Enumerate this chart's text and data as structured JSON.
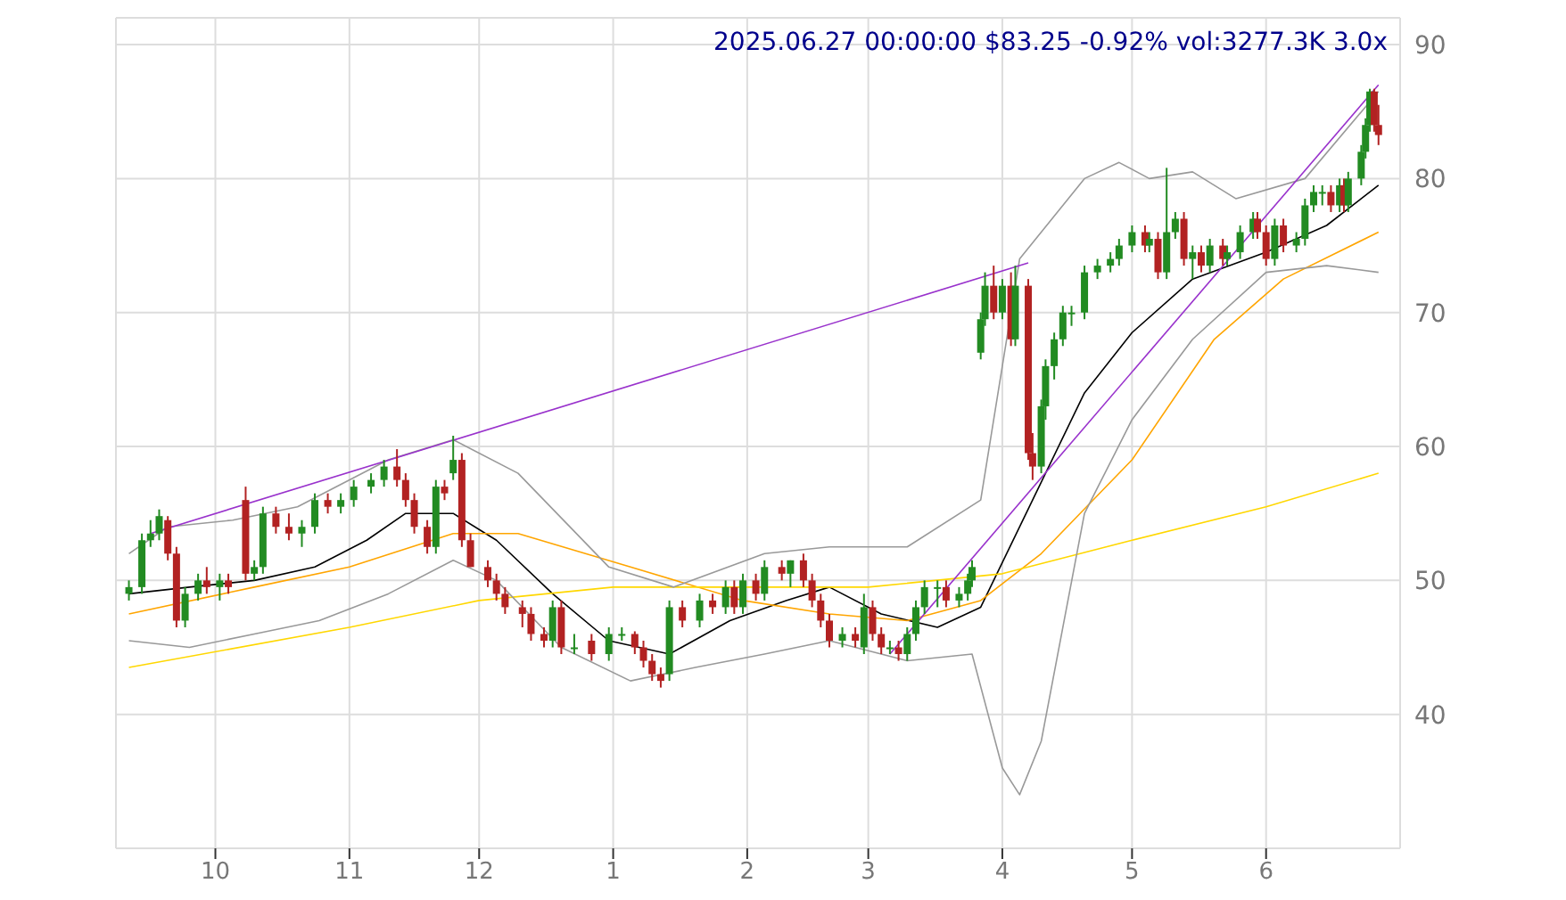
{
  "chart_data": {
    "type": "candlestick",
    "title": "2025.06.27 00:00:00 $83.25 -0.92% vol:3277.3K 3.0x",
    "xlim": [
      "2024-09-08",
      "2025-07-02"
    ],
    "xticks": [
      {
        "value": "2024-10-01",
        "label": "10"
      },
      {
        "value": "2024-11-01",
        "label": "11"
      },
      {
        "value": "2024-12-01",
        "label": "12"
      },
      {
        "value": "2025-01-01",
        "label": "1"
      },
      {
        "value": "2025-02-01",
        "label": "2"
      },
      {
        "value": "2025-03-01",
        "label": "3"
      },
      {
        "value": "2025-04-01",
        "label": "4"
      },
      {
        "value": "2025-05-01",
        "label": "5"
      },
      {
        "value": "2025-06-01",
        "label": "6"
      }
    ],
    "ylim": [
      30,
      92
    ],
    "yticks": [
      40,
      50,
      60,
      70,
      80,
      90
    ],
    "grid": true,
    "x": [
      "2024-09-11",
      "2024-09-14",
      "2024-09-16",
      "2024-09-18",
      "2024-09-20",
      "2024-09-22",
      "2024-09-24",
      "2024-09-27",
      "2024-09-29",
      "2024-10-02",
      "2024-10-04",
      "2024-10-08",
      "2024-10-10",
      "2024-10-12",
      "2024-10-15",
      "2024-10-18",
      "2024-10-21",
      "2024-10-24",
      "2024-10-27",
      "2024-10-30",
      "2024-11-02",
      "2024-11-06",
      "2024-11-09",
      "2024-11-12",
      "2024-11-14",
      "2024-11-16",
      "2024-11-19",
      "2024-11-21",
      "2024-11-23",
      "2024-11-25",
      "2024-11-27",
      "2024-11-29",
      "2024-12-03",
      "2024-12-05",
      "2024-12-07",
      "2024-12-11",
      "2024-12-13",
      "2024-12-16",
      "2024-12-18",
      "2024-12-20",
      "2024-12-23",
      "2024-12-27",
      "2024-12-31",
      "2025-01-03",
      "2025-01-06",
      "2025-01-08",
      "2025-01-10",
      "2025-01-12",
      "2025-01-14",
      "2025-01-17",
      "2025-01-21",
      "2025-01-24",
      "2025-01-27",
      "2025-01-29",
      "2025-01-31",
      "2025-02-03",
      "2025-02-05",
      "2025-02-09",
      "2025-02-11",
      "2025-02-14",
      "2025-02-16",
      "2025-02-18",
      "2025-02-20",
      "2025-02-23",
      "2025-02-26",
      "2025-02-28",
      "2025-03-02",
      "2025-03-04",
      "2025-03-06",
      "2025-03-08",
      "2025-03-10",
      "2025-03-12",
      "2025-03-14",
      "2025-03-17",
      "2025-03-19",
      "2025-03-22",
      "2025-03-24",
      "2025-03-25",
      "2025-03-27",
      "2025-03-28",
      "2025-03-30",
      "2025-04-01",
      "2025-04-03",
      "2025-04-04",
      "2025-04-07",
      "2025-04-08",
      "2025-04-10",
      "2025-04-11",
      "2025-04-13",
      "2025-04-15",
      "2025-04-17",
      "2025-04-20",
      "2025-04-23",
      "2025-04-26",
      "2025-04-28",
      "2025-05-01",
      "2025-05-04",
      "2025-05-05",
      "2025-05-07",
      "2025-05-09",
      "2025-05-11",
      "2025-05-13",
      "2025-05-15",
      "2025-05-17",
      "2025-05-19",
      "2025-05-22",
      "2025-05-23",
      "2025-05-26",
      "2025-05-29",
      "2025-05-30",
      "2025-06-01",
      "2025-06-03",
      "2025-06-05",
      "2025-06-08",
      "2025-06-10",
      "2025-06-12",
      "2025-06-14",
      "2025-06-16",
      "2025-06-18",
      "2025-06-19",
      "2025-06-20",
      "2025-06-23",
      "2025-06-24",
      "2025-06-25",
      "2025-06-26",
      "2025-06-27"
    ],
    "ohlc": [
      [
        49,
        50,
        48.5,
        49.5
      ],
      [
        49.5,
        53.5,
        49,
        53
      ],
      [
        53,
        54.5,
        52.5,
        53.5
      ],
      [
        53.5,
        55.3,
        53,
        54.8
      ],
      [
        54.5,
        54.8,
        51.5,
        52
      ],
      [
        52,
        52.5,
        46.5,
        47
      ],
      [
        47,
        49.5,
        46.5,
        49
      ],
      [
        49,
        50.5,
        48.5,
        50
      ],
      [
        50,
        51,
        49,
        49.5
      ],
      [
        49.5,
        50.5,
        48.5,
        50
      ],
      [
        50,
        50.5,
        49,
        49.5
      ],
      [
        56,
        57,
        50,
        50.5
      ],
      [
        50.5,
        51.5,
        50,
        51
      ],
      [
        51,
        55.5,
        50.5,
        55
      ],
      [
        55,
        55.5,
        53.5,
        54
      ],
      [
        54,
        55,
        53,
        53.5
      ],
      [
        53.5,
        54.5,
        52.5,
        54
      ],
      [
        54,
        56.5,
        53.5,
        56
      ],
      [
        56,
        56.5,
        55,
        55.5
      ],
      [
        55.5,
        56.5,
        55,
        56
      ],
      [
        56,
        57.5,
        55.5,
        57
      ],
      [
        57,
        58,
        56.5,
        57.5
      ],
      [
        57.5,
        59,
        57,
        58.5
      ],
      [
        58.5,
        59.8,
        57,
        57.5
      ],
      [
        57.5,
        58,
        55.5,
        56
      ],
      [
        56,
        56.5,
        53.5,
        54
      ],
      [
        54,
        54.5,
        52,
        52.5
      ],
      [
        52.5,
        57.5,
        52,
        57
      ],
      [
        57,
        57.5,
        56,
        56.5
      ],
      [
        58,
        60.8,
        57.5,
        59
      ],
      [
        59,
        59.5,
        52.5,
        53
      ],
      [
        53,
        53.5,
        51,
        51
      ],
      [
        51,
        51.5,
        49.5,
        50
      ],
      [
        50,
        50.5,
        48.5,
        49
      ],
      [
        49,
        49.5,
        47.5,
        48
      ],
      [
        48,
        48.5,
        46.5,
        47.5
      ],
      [
        47.5,
        48,
        45.5,
        46
      ],
      [
        46,
        46.5,
        45,
        45.5
      ],
      [
        45.5,
        48.5,
        45,
        48
      ],
      [
        48,
        48.5,
        44.5,
        45
      ],
      [
        45,
        46,
        44.5,
        45
      ],
      [
        45.5,
        46,
        44,
        44.5
      ],
      [
        44.5,
        46.5,
        44,
        46
      ],
      [
        46,
        46.5,
        45.5,
        46
      ],
      [
        46,
        46.2,
        44.5,
        45
      ],
      [
        45,
        45.5,
        43.5,
        44
      ],
      [
        44,
        44.5,
        42.5,
        43
      ],
      [
        43,
        43.5,
        42,
        42.5
      ],
      [
        43,
        48.5,
        42.5,
        48
      ],
      [
        48,
        48.5,
        46.5,
        47
      ],
      [
        47,
        49,
        46.5,
        48.5
      ],
      [
        48.5,
        49,
        47.5,
        48
      ],
      [
        48,
        50,
        47.5,
        49.5
      ],
      [
        49.5,
        50,
        47.5,
        48
      ],
      [
        48,
        50.5,
        47.5,
        50
      ],
      [
        50,
        50.5,
        48.5,
        49
      ],
      [
        49,
        51.5,
        48.5,
        51
      ],
      [
        51,
        51.5,
        50,
        50.5
      ],
      [
        50.5,
        51.5,
        49.5,
        51.5
      ],
      [
        51.5,
        52,
        49.5,
        50
      ],
      [
        50,
        50.5,
        48,
        48.5
      ],
      [
        48.5,
        49,
        46.5,
        47
      ],
      [
        47,
        47.5,
        45,
        45.5
      ],
      [
        45.5,
        46.5,
        45,
        46
      ],
      [
        46,
        46.5,
        45,
        45.5
      ],
      [
        45,
        49,
        44.5,
        48
      ],
      [
        48,
        48.5,
        45.5,
        46
      ],
      [
        46,
        46.5,
        44.5,
        45
      ],
      [
        45,
        45.5,
        44.5,
        45
      ],
      [
        45,
        45.5,
        44,
        44.5
      ],
      [
        44.5,
        46.5,
        44,
        46
      ],
      [
        46,
        48.5,
        45.5,
        48
      ],
      [
        48,
        50,
        47.5,
        49.5
      ],
      [
        49.5,
        50,
        48,
        49.5
      ],
      [
        49.5,
        50,
        48,
        48.5
      ],
      [
        48.5,
        49.5,
        48,
        49
      ],
      [
        49,
        50.5,
        48.5,
        50
      ],
      [
        50,
        51.5,
        49.5,
        51
      ],
      [
        67,
        70,
        66.5,
        69.5
      ],
      [
        69.5,
        73,
        69,
        72
      ],
      [
        72,
        73.5,
        69.5,
        70
      ],
      [
        70,
        72.5,
        69.5,
        72
      ],
      [
        72,
        73,
        67.5,
        68
      ],
      [
        68,
        73.5,
        67.5,
        72
      ],
      [
        72,
        72.5,
        59,
        59.5
      ],
      [
        59.5,
        61,
        57.5,
        58.5
      ],
      [
        58.5,
        63.5,
        58,
        63
      ],
      [
        63,
        66.5,
        62,
        66
      ],
      [
        66,
        68.5,
        65,
        68
      ],
      [
        68,
        70.5,
        67.5,
        70
      ],
      [
        70,
        70.5,
        69,
        70
      ],
      [
        70,
        73.5,
        69.5,
        73
      ],
      [
        73,
        74,
        72.5,
        73.5
      ],
      [
        73.5,
        74.5,
        73,
        74
      ],
      [
        74,
        75.5,
        73.5,
        75
      ],
      [
        75,
        76.5,
        74.5,
        76
      ],
      [
        76,
        76.5,
        74.5,
        75
      ],
      [
        75,
        76,
        74.5,
        75.5
      ],
      [
        75.5,
        76,
        72.5,
        73
      ],
      [
        73,
        80.8,
        72.5,
        76
      ],
      [
        76,
        77.5,
        75.5,
        77
      ],
      [
        77,
        77.5,
        73.5,
        74
      ],
      [
        74,
        75,
        72.5,
        74.5
      ],
      [
        74.5,
        75,
        73,
        73.5
      ],
      [
        73.5,
        75.5,
        73,
        75
      ],
      [
        75,
        75.5,
        73.5,
        74
      ],
      [
        74,
        75,
        73.5,
        74.5
      ],
      [
        74.5,
        76.5,
        74,
        76
      ],
      [
        76,
        77.5,
        75.5,
        77
      ],
      [
        77,
        77.5,
        75.5,
        76
      ],
      [
        76,
        76.5,
        73.5,
        74
      ],
      [
        74,
        77,
        73.5,
        76.5
      ],
      [
        76.5,
        77,
        74.5,
        75
      ],
      [
        75,
        76,
        74.5,
        75.5
      ],
      [
        75.5,
        78.5,
        75,
        78
      ],
      [
        78,
        79.5,
        77.5,
        79
      ],
      [
        79,
        79.5,
        78,
        79
      ],
      [
        79,
        79.5,
        77.5,
        78
      ],
      [
        78,
        80,
        77.5,
        79.5
      ],
      [
        79.5,
        80,
        77.5,
        78
      ],
      [
        78,
        80.5,
        77.5,
        80
      ],
      [
        80,
        82.5,
        79.5,
        82
      ],
      [
        82,
        84.5,
        81.5,
        84
      ],
      [
        84,
        86.7,
        83.5,
        86.5
      ],
      [
        86.5,
        86.7,
        83.5,
        84
      ],
      [
        84,
        85.5,
        82.5,
        83.25
      ]
    ],
    "series": [
      {
        "type": "line",
        "color": "#000000",
        "x": [
          "2024-09-11",
          "2024-09-25",
          "2024-10-10",
          "2024-10-24",
          "2024-11-05",
          "2024-11-14",
          "2024-11-25",
          "2024-12-05",
          "2024-12-18",
          "2024-12-31",
          "2025-01-14",
          "2025-01-28",
          "2025-02-10",
          "2025-02-20",
          "2025-03-04",
          "2025-03-17",
          "2025-03-27",
          "2025-04-08",
          "2025-04-20",
          "2025-05-01",
          "2025-05-15",
          "2025-06-01",
          "2025-06-15",
          "2025-06-27"
        ],
        "values": [
          49,
          49.5,
          50,
          51,
          53,
          55,
          55,
          53,
          49,
          45.5,
          44.5,
          47,
          48.5,
          49.5,
          47.5,
          46.5,
          48,
          56,
          64,
          68.5,
          72.5,
          74.5,
          76.5,
          79.5
        ]
      },
      {
        "type": "line",
        "color": "#ffa500",
        "x": [
          "2024-09-11",
          "2024-10-10",
          "2024-11-01",
          "2024-11-25",
          "2024-12-10",
          "2025-01-05",
          "2025-01-31",
          "2025-02-20",
          "2025-03-10",
          "2025-03-27",
          "2025-04-10",
          "2025-05-01",
          "2025-05-20",
          "2025-06-05",
          "2025-06-27"
        ],
        "values": [
          47.5,
          49.5,
          51,
          53.5,
          53.5,
          51,
          48.5,
          47.5,
          47,
          48.5,
          52,
          59,
          68,
          72.5,
          76
        ]
      },
      {
        "type": "line",
        "color": "#ffd700",
        "x": [
          "2024-09-11",
          "2024-11-01",
          "2024-12-01",
          "2025-01-01",
          "2025-02-01",
          "2025-03-01",
          "2025-04-01",
          "2025-05-01",
          "2025-06-01",
          "2025-06-27"
        ],
        "values": [
          43.5,
          46.5,
          48.5,
          49.5,
          49.5,
          49.5,
          50.5,
          53,
          55.5,
          58
        ]
      },
      {
        "type": "line",
        "color": "#999999",
        "x": [
          "2024-09-11",
          "2024-09-20",
          "2024-10-05",
          "2024-10-20",
          "2024-11-10",
          "2024-11-25",
          "2024-12-10",
          "2024-12-31",
          "2025-01-15",
          "2025-02-05",
          "2025-02-20",
          "2025-03-10",
          "2025-03-27",
          "2025-04-05",
          "2025-04-20",
          "2025-04-28",
          "2025-05-05",
          "2025-05-15",
          "2025-05-25",
          "2025-06-10",
          "2025-06-27"
        ],
        "values": [
          52,
          54,
          54.5,
          55.5,
          59,
          60.5,
          58,
          51,
          49.5,
          52,
          52.5,
          52.5,
          56,
          74,
          80,
          81.2,
          80,
          80.5,
          78.5,
          80,
          86.5
        ]
      },
      {
        "type": "line",
        "color": "#999999",
        "x": [
          "2024-09-11",
          "2024-09-25",
          "2024-10-10",
          "2024-10-25",
          "2024-11-10",
          "2024-11-25",
          "2024-12-05",
          "2024-12-20",
          "2025-01-05",
          "2025-01-20",
          "2025-02-05",
          "2025-02-20",
          "2025-03-10",
          "2025-03-25",
          "2025-04-01",
          "2025-04-05",
          "2025-04-10",
          "2025-04-20",
          "2025-05-01",
          "2025-05-15",
          "2025-06-01",
          "2025-06-15",
          "2025-06-27"
        ],
        "values": [
          45.5,
          45,
          46,
          47,
          49,
          51.5,
          50,
          45,
          42.5,
          43.5,
          44.5,
          45.5,
          44,
          44.5,
          36,
          34,
          38,
          55,
          62,
          68,
          73,
          73.5,
          73
        ]
      },
      {
        "type": "line",
        "color": "#9932cc",
        "x": [
          "2024-09-16",
          "2025-04-07"
        ],
        "values": [
          53.5,
          73.7
        ]
      },
      {
        "type": "line",
        "color": "#9932cc",
        "x": [
          "2025-03-06",
          "2025-06-27"
        ],
        "values": [
          44.5,
          87
        ]
      }
    ]
  }
}
